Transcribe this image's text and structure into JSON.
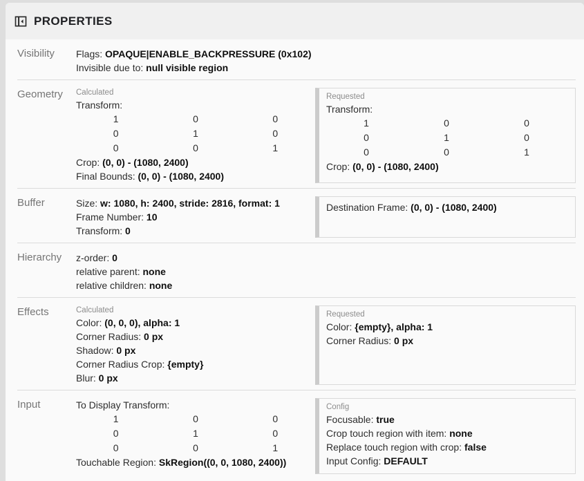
{
  "header": {
    "title": "PROPERTIES",
    "icon": "left-panel-close-icon"
  },
  "colors": {
    "page_bg": "#dedede",
    "panel_bg": "#fafafa",
    "header_bg": "#f0f0f0",
    "divider": "#dbdbdb",
    "box_border": "#d9d9d9",
    "box_bar": "#cbcbcb",
    "label_gray": "#757575",
    "caption_gray": "#8c8c8c",
    "text": "#2d2d2d",
    "value": "#0f0f0f",
    "title": "#202124"
  },
  "sections": [
    {
      "id": "visibility",
      "label": "Visibility",
      "left": [
        {
          "type": "kv",
          "label": "Flags:",
          "value": "OPAQUE|ENABLE_BACKPRESSURE (0x102)"
        },
        {
          "type": "kv",
          "label": "Invisible due to:",
          "value": "null visible region"
        }
      ]
    },
    {
      "id": "geometry",
      "label": "Geometry",
      "left": [
        {
          "type": "caption",
          "text": "Calculated"
        },
        {
          "type": "kv",
          "label": "Transform:",
          "value": ""
        },
        {
          "type": "matrix",
          "rows": [
            [
              "1",
              "0",
              "0"
            ],
            [
              "0",
              "1",
              "0"
            ],
            [
              "0",
              "0",
              "1"
            ]
          ]
        },
        {
          "type": "kv",
          "label": "Crop:",
          "value": "(0, 0) - (1080, 2400)"
        },
        {
          "type": "kv",
          "label": "Final Bounds:",
          "value": "(0, 0) - (1080, 2400)"
        }
      ],
      "right": [
        {
          "type": "caption",
          "text": "Requested"
        },
        {
          "type": "kv",
          "label": "Transform:",
          "value": ""
        },
        {
          "type": "matrix",
          "rows": [
            [
              "1",
              "0",
              "0"
            ],
            [
              "0",
              "1",
              "0"
            ],
            [
              "0",
              "0",
              "1"
            ]
          ]
        },
        {
          "type": "kv",
          "label": "Crop:",
          "value": "(0, 0) - (1080, 2400)"
        }
      ]
    },
    {
      "id": "buffer",
      "label": "Buffer",
      "left": [
        {
          "type": "kv",
          "label": "Size:",
          "value": "w: 1080, h: 2400, stride: 2816, format: 1"
        },
        {
          "type": "kv",
          "label": "Frame Number:",
          "value": "10"
        },
        {
          "type": "kv",
          "label": "Transform:",
          "value": "0"
        }
      ],
      "right": [
        {
          "type": "kv",
          "label": "Destination Frame:",
          "value": "(0, 0) - (1080, 2400)"
        }
      ]
    },
    {
      "id": "hierarchy",
      "label": "Hierarchy",
      "left": [
        {
          "type": "kv",
          "label": "z-order:",
          "value": "0"
        },
        {
          "type": "kv",
          "label": "relative parent:",
          "value": "none"
        },
        {
          "type": "kv",
          "label": "relative children:",
          "value": "none"
        }
      ]
    },
    {
      "id": "effects",
      "label": "Effects",
      "left": [
        {
          "type": "caption",
          "text": "Calculated"
        },
        {
          "type": "kv",
          "label": "Color:",
          "value": "(0, 0, 0), alpha: 1"
        },
        {
          "type": "kv",
          "label": "Corner Radius:",
          "value": "0 px"
        },
        {
          "type": "kv",
          "label": "Shadow:",
          "value": "0 px"
        },
        {
          "type": "kv",
          "label": "Corner Radius Crop:",
          "value": "{empty}"
        },
        {
          "type": "kv",
          "label": "Blur:",
          "value": "0 px"
        }
      ],
      "right": [
        {
          "type": "caption",
          "text": "Requested"
        },
        {
          "type": "kv",
          "label": "Color:",
          "value": "{empty}, alpha: 1"
        },
        {
          "type": "kv",
          "label": "Corner Radius:",
          "value": "0 px"
        }
      ]
    },
    {
      "id": "input",
      "label": "Input",
      "left": [
        {
          "type": "kv",
          "label": "To Display Transform:",
          "value": ""
        },
        {
          "type": "matrix",
          "rows": [
            [
              "1",
              "0",
              "0"
            ],
            [
              "0",
              "1",
              "0"
            ],
            [
              "0",
              "0",
              "1"
            ]
          ]
        },
        {
          "type": "kv",
          "label": "Touchable Region:",
          "value": "SkRegion((0, 0, 1080, 2400))"
        }
      ],
      "right": [
        {
          "type": "caption",
          "text": "Config"
        },
        {
          "type": "kv",
          "label": "Focusable:",
          "value": "true"
        },
        {
          "type": "kv",
          "label": "Crop touch region with item:",
          "value": "none"
        },
        {
          "type": "kv",
          "label": "Replace touch region with crop:",
          "value": "false"
        },
        {
          "type": "kv",
          "label": "Input Config:",
          "value": "DEFAULT"
        }
      ]
    }
  ]
}
